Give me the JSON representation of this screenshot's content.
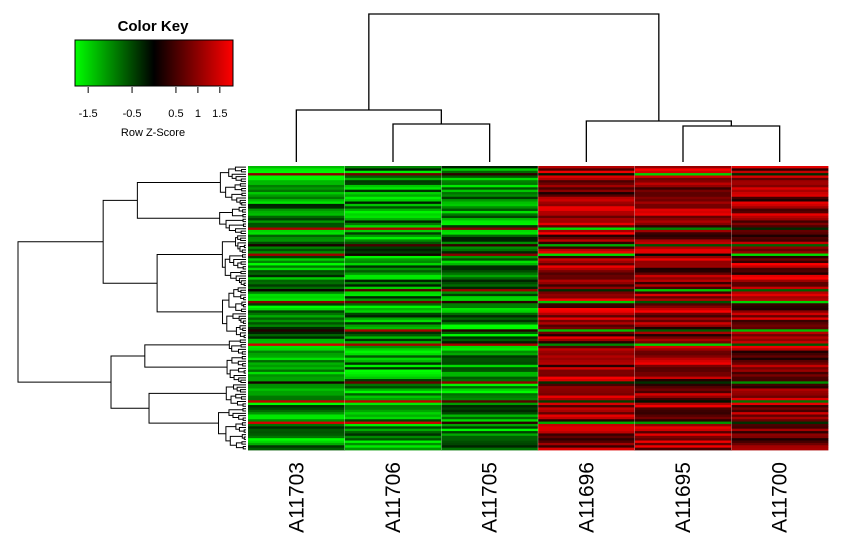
{
  "chart_data": {
    "type": "heatmap",
    "color_key": {
      "title": "Color Key",
      "label": "Row Z-Score",
      "ticks": [
        "-1.5",
        "-0.5",
        "0.5",
        "1",
        "1.5"
      ],
      "tick_values": [
        -1.5,
        -0.5,
        0.5,
        1,
        1.5
      ],
      "range": [
        -1.8,
        1.8
      ],
      "low_color": "#00ff00",
      "mid_color": "#000000",
      "high_color": "#ff0000"
    },
    "columns": [
      "A11703",
      "A11706",
      "A11705",
      "A11696",
      "A11695",
      "A11700"
    ],
    "column_groups": {
      "low_expression": [
        "A11703",
        "A11706",
        "A11705"
      ],
      "high_expression": [
        "A11696",
        "A11695",
        "A11700"
      ]
    },
    "row_count": 120,
    "row_dendrogram": true,
    "column_dendrogram": true,
    "values_estimated": true
  },
  "colors": {
    "background": "#ffffff",
    "line": "#000000",
    "separator": "#ffffff"
  }
}
